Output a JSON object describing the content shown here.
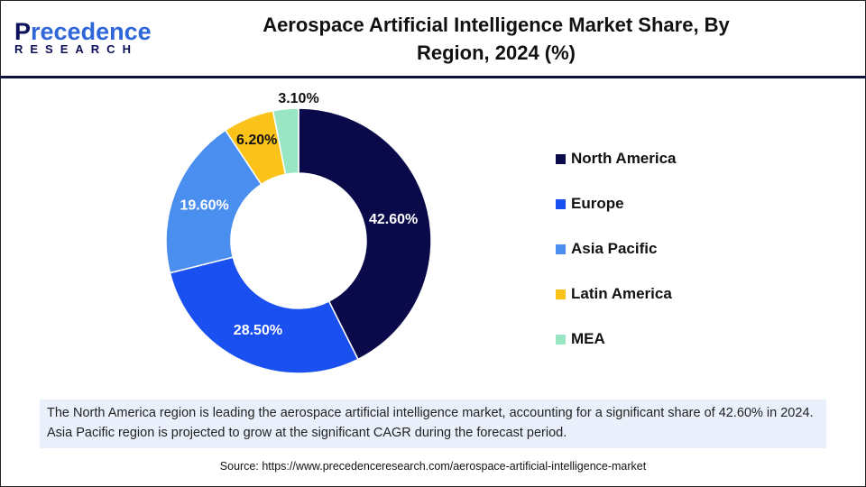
{
  "logo": {
    "line1a": "P",
    "line1b": "recedence",
    "line2": "RESEARCH"
  },
  "title": "Aerospace Artificial Intelligence Market Share, By Region, 2024 (%)",
  "chart_data": {
    "type": "pie",
    "variant": "donut",
    "title": "Aerospace Artificial Intelligence Market Share, By Region, 2024 (%)",
    "categories": [
      "North America",
      "Europe",
      "Asia Pacific",
      "Latin America",
      "MEA"
    ],
    "values": [
      42.6,
      28.5,
      19.6,
      6.2,
      3.1
    ],
    "labels": [
      "42.60%",
      "28.50%",
      "19.60%",
      "6.20%",
      "3.10%"
    ],
    "colors": [
      "#0a0a4a",
      "#1a4ff0",
      "#4a8ef0",
      "#fbc21a",
      "#98e6c3"
    ],
    "legend_position": "right"
  },
  "note": "The North America region is leading the aerospace artificial intelligence market, accounting for a significant share of 42.60% in 2024. Asia Pacific region is projected to grow at the significant CAGR during the forecast period.",
  "source": "Source: https://www.precedenceresearch.com/aerospace-artificial-intelligence-market"
}
